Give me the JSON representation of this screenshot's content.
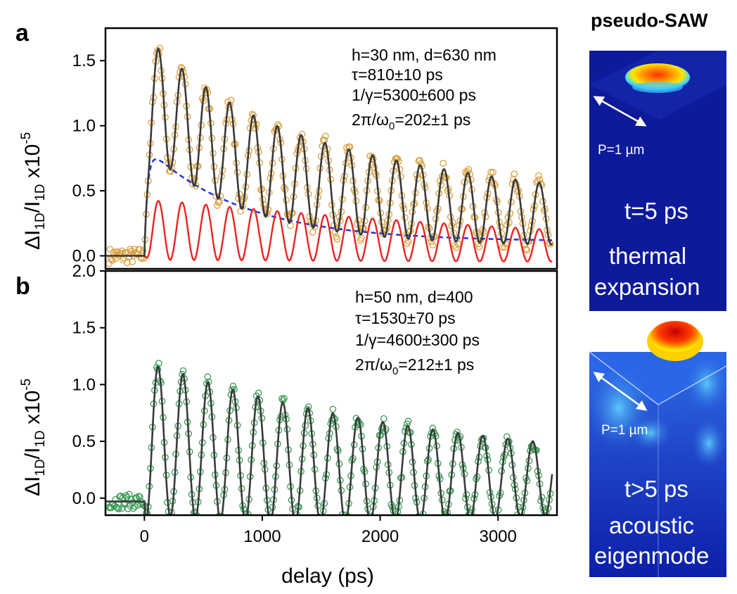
{
  "side_title": "pseudo-SAW",
  "colors": {
    "data_a": "#d9a040",
    "data_b": "#3a9a55",
    "fit": "#3a3a3a",
    "thermal": "#2233dd",
    "acoustic": "#ee2222"
  },
  "insets": [
    {
      "label": "P=1 µm",
      "time": "t=5 ps",
      "caption": [
        "thermal",
        "expansion"
      ]
    },
    {
      "label": "P=1 µm",
      "time": "t>5 ps",
      "caption": [
        "acoustic",
        "eigenmode"
      ]
    }
  ],
  "chart_data": [
    {
      "type": "scatter",
      "panel": "a",
      "ylabel": "ΔI1D/I1D x10-5",
      "ylim": [
        -0.1,
        1.75
      ],
      "xlim": [
        -330,
        3500
      ],
      "yticks": [
        "0.0",
        "0.5",
        "1.0",
        "1.5"
      ],
      "annotations": [
        "h=30 nm, d=630 nm",
        "τ=810±10 ps",
        "1/γ=5300±600 ps",
        "2π/ω0=202±1 ps"
      ],
      "params": {
        "tau_ps": 810,
        "decay_ps": 5300,
        "period_ps": 202
      },
      "series": [
        {
          "kind": "measured points",
          "peak": 1.7,
          "baseline": 0.0
        },
        {
          "kind": "fit",
          "peak": 1.67
        },
        {
          "kind": "thermal expansion",
          "peak": 0.74,
          "end": 0.15
        },
        {
          "kind": "acoustic eigenmode",
          "peak": 0.47,
          "end": 0.1
        }
      ]
    },
    {
      "type": "scatter",
      "panel": "b",
      "xlabel": "delay (ps)",
      "ylabel": "ΔI1D/I1D x10-5",
      "ylim": [
        -0.15,
        2.0
      ],
      "xlim": [
        -330,
        3500
      ],
      "xticks": [
        "0",
        "1000",
        "2000",
        "3000"
      ],
      "yticks": [
        "0.0",
        "0.5",
        "1.0",
        "1.5",
        "2.0"
      ],
      "annotations": [
        "h=50 nm, d=400",
        "τ=1530±70 ps",
        "1/γ=4600±300 ps",
        "2π/ω0=212±1 ps"
      ],
      "params": {
        "tau_ps": 1530,
        "decay_ps": 4600,
        "period_ps": 212
      },
      "series": [
        {
          "kind": "measured points",
          "peak": 1.38,
          "baseline": -0.03
        },
        {
          "kind": "fit",
          "peak": 1.2
        }
      ]
    }
  ]
}
